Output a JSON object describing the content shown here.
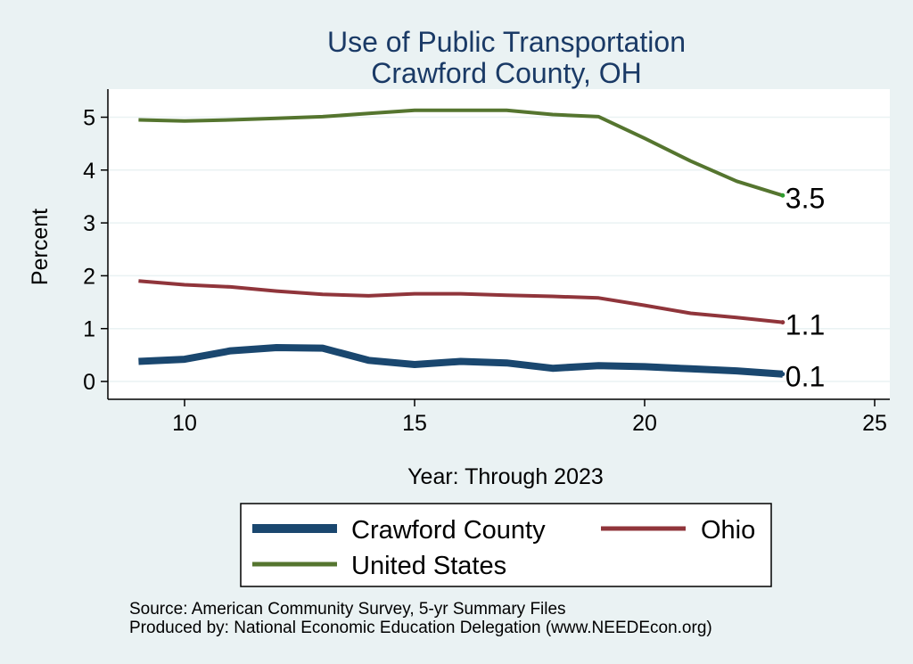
{
  "chart_data": {
    "type": "line",
    "title": [
      "Use of Public Transportation",
      "Crawford County, OH"
    ],
    "xlabel": "Year: Through 2023",
    "ylabel": "Percent",
    "xlim": [
      9,
      25
    ],
    "ylim": [
      0,
      5
    ],
    "xticks": [
      10,
      15,
      20,
      25
    ],
    "yticks": [
      0,
      1,
      2,
      3,
      4,
      5
    ],
    "grid": "horizontal",
    "legend_position": "bottom",
    "x": [
      9,
      10,
      11,
      12,
      13,
      14,
      15,
      16,
      17,
      18,
      19,
      20,
      21,
      22,
      23
    ],
    "series": [
      {
        "name": "Crawford County",
        "color": "#1a476f",
        "values": [
          0.38,
          0.42,
          0.58,
          0.64,
          0.63,
          0.4,
          0.32,
          0.38,
          0.35,
          0.25,
          0.3,
          0.28,
          0.24,
          0.2,
          0.14
        ],
        "end_label": "0.1"
      },
      {
        "name": "Ohio",
        "color": "#90353b",
        "values": [
          1.9,
          1.83,
          1.79,
          1.71,
          1.65,
          1.62,
          1.66,
          1.66,
          1.63,
          1.61,
          1.58,
          1.44,
          1.29,
          1.21,
          1.12
        ],
        "end_label": "1.1"
      },
      {
        "name": "United States",
        "color": "#55752f",
        "values": [
          4.95,
          4.93,
          4.95,
          4.98,
          5.01,
          5.07,
          5.13,
          5.13,
          5.13,
          5.05,
          5.01,
          4.6,
          4.17,
          3.79,
          3.52
        ],
        "end_label": "3.5"
      }
    ]
  },
  "footer": {
    "source": "Source: American Community Survey, 5-yr Summary Files",
    "producer": "Produced by: National Economic Education Delegation (www.NEEDEcon.org)"
  }
}
